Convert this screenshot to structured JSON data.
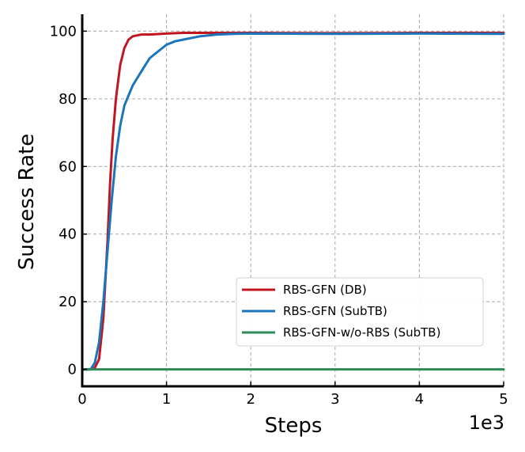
{
  "chart_data": {
    "type": "line",
    "xlabel": "Steps",
    "ylabel": "Success Rate",
    "x_offset_label": "1e3",
    "xlim": [
      0,
      5
    ],
    "ylim": [
      -5,
      105
    ],
    "xticks": [
      0,
      1,
      2,
      3,
      4,
      5
    ],
    "xtick_labels": [
      "0",
      "1",
      "2",
      "3",
      "4",
      "5"
    ],
    "yticks": [
      0,
      20,
      40,
      60,
      80,
      100
    ],
    "ytick_labels": [
      "0",
      "20",
      "40",
      "60",
      "80",
      "100"
    ],
    "grid": true,
    "legend_position": "center-right",
    "series": [
      {
        "name": "RBS-GFN (DB)",
        "color": "#c0161f",
        "x": [
          0,
          0.1,
          0.15,
          0.2,
          0.25,
          0.3,
          0.33,
          0.36,
          0.4,
          0.45,
          0.5,
          0.55,
          0.6,
          0.7,
          0.8,
          1.0,
          1.2,
          1.5,
          2.0,
          3.0,
          4.0,
          5.0
        ],
        "y": [
          0,
          0,
          0.5,
          3,
          15,
          38,
          55,
          68,
          80,
          90,
          95,
          97.5,
          98.5,
          99,
          99,
          99.3,
          99.5,
          99.5,
          99.5,
          99.4,
          99.5,
          99.5
        ]
      },
      {
        "name": "RBS-GFN (SubTB)",
        "color": "#1b75bc",
        "x": [
          0,
          0.1,
          0.15,
          0.2,
          0.25,
          0.3,
          0.35,
          0.4,
          0.45,
          0.5,
          0.55,
          0.6,
          0.7,
          0.8,
          0.9,
          1.0,
          1.1,
          1.2,
          1.4,
          1.6,
          1.8,
          2.0,
          3.0,
          4.0,
          5.0
        ],
        "y": [
          0,
          0,
          2,
          8,
          20,
          35,
          50,
          63,
          72,
          78,
          81,
          84,
          88,
          92,
          94,
          96,
          97,
          97.5,
          98.5,
          99,
          99.2,
          99.3,
          99.2,
          99.3,
          99.2
        ]
      },
      {
        "name": "RBS-GFN-w/o-RBS (SubTB)",
        "color": "#2e8b57",
        "x": [
          0,
          5.0
        ],
        "y": [
          0,
          0
        ]
      }
    ]
  }
}
